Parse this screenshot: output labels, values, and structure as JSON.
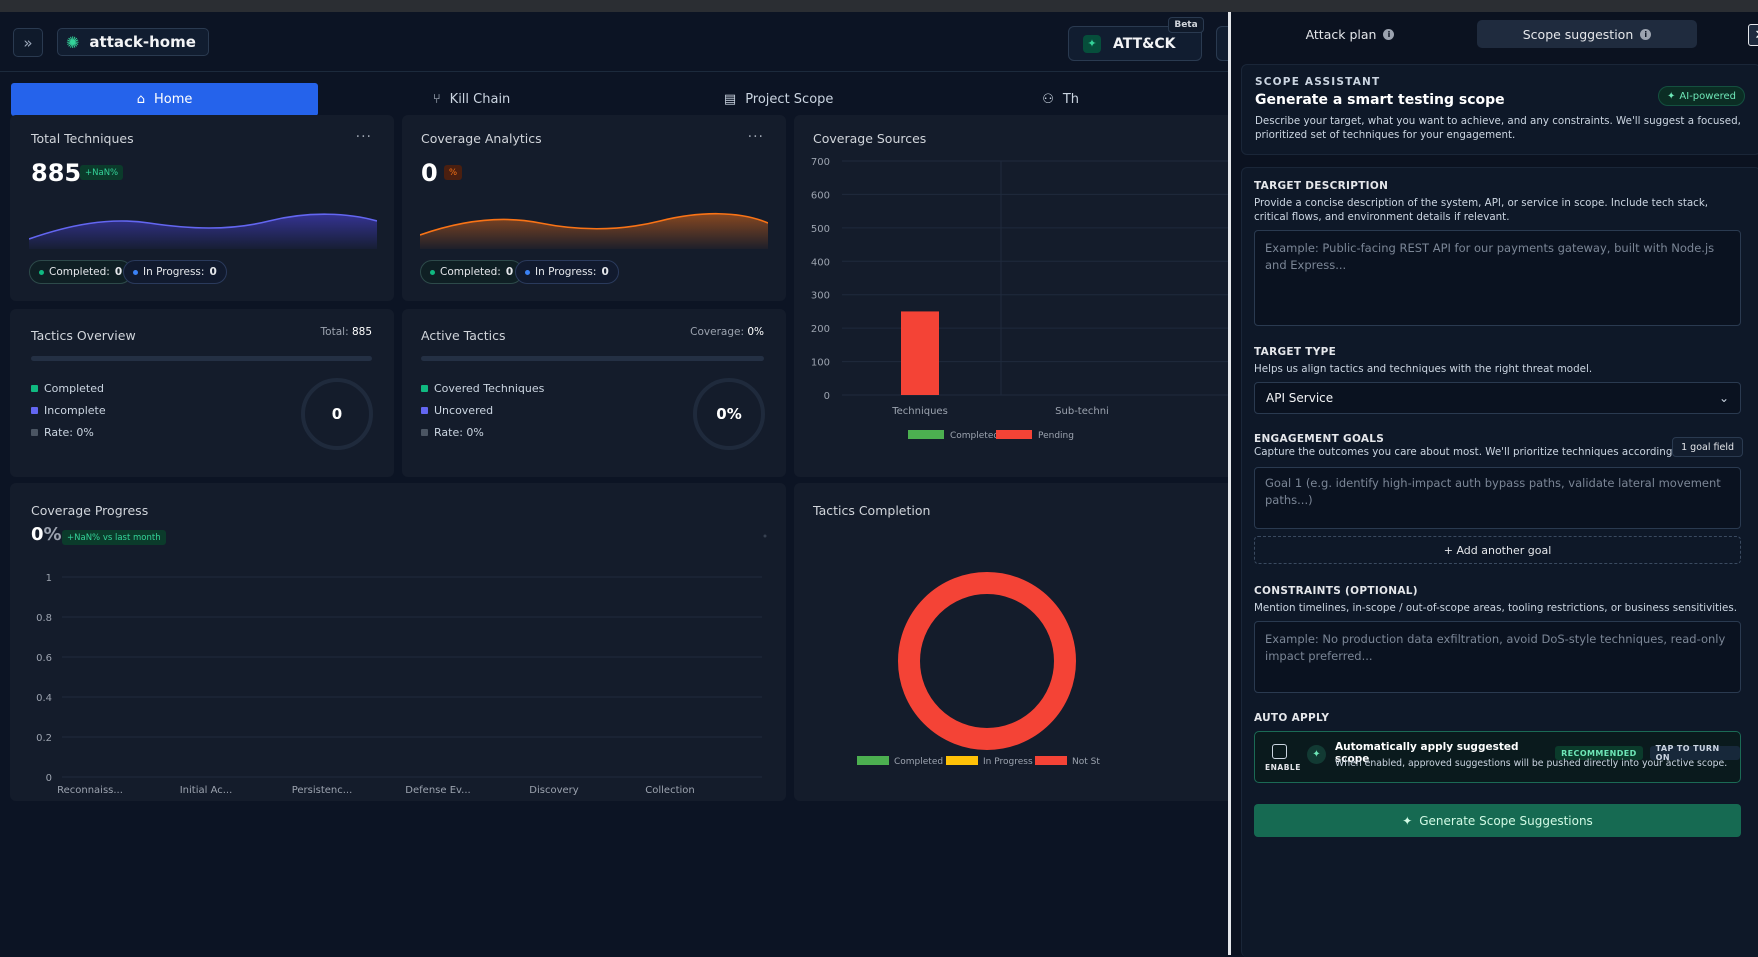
{
  "header": {
    "project_name": "attack-home",
    "attack_label": "ATT&CK",
    "beta_label": "Beta"
  },
  "nav": {
    "tabs": [
      {
        "label": "Home",
        "active": true
      },
      {
        "label": "Kill Chain"
      },
      {
        "label": "Project Scope"
      },
      {
        "label": "Th"
      }
    ]
  },
  "cards": {
    "total_techniques": {
      "title": "Total Techniques",
      "value": "885",
      "delta": "+NaN%",
      "completed_label": "Completed:",
      "completed_value": "0",
      "inprogress_label": "In Progress:",
      "inprogress_value": "0"
    },
    "coverage_analytics": {
      "title": "Coverage Analytics",
      "value": "0",
      "delta": "%",
      "completed_label": "Completed:",
      "completed_value": "0",
      "inprogress_label": "In Progress:",
      "inprogress_value": "0"
    },
    "tactics_overview": {
      "title": "Tactics Overview",
      "total_label": "Total:",
      "total_value": "885",
      "items": [
        "Completed",
        "Incomplete",
        "Rate: 0%"
      ],
      "ring_value": "0"
    },
    "active_tactics": {
      "title": "Active Tactics",
      "coverage_label": "Coverage:",
      "coverage_value": "0%",
      "items": [
        "Covered Techniques",
        "Uncovered",
        "Rate: 0%"
      ],
      "ring_value": "0%"
    },
    "coverage_progress": {
      "title": "Coverage Progress",
      "value": "0",
      "unit": "%",
      "delta": "+NaN% vs last month"
    },
    "coverage_sources": {
      "title": "Coverage Sources"
    },
    "tactics_completion": {
      "title": "Tactics Completion"
    }
  },
  "chart_data": [
    {
      "type": "bar",
      "title": "Coverage Sources",
      "categories": [
        "Techniques",
        "Sub-techni"
      ],
      "series": [
        {
          "name": "Completed",
          "color": "#4caf50",
          "values": [
            0,
            0
          ]
        },
        {
          "name": "Pending",
          "color": "#f44336",
          "values": [
            250,
            0
          ]
        }
      ],
      "ylim": [
        0,
        700
      ],
      "yticks": [
        0,
        100,
        200,
        300,
        400,
        500,
        600,
        700
      ],
      "legend": "bottom"
    },
    {
      "type": "line",
      "title": "Coverage Progress",
      "categories": [
        "Reconnaiss...",
        "Initial Ac...",
        "Persistenc...",
        "Defense Ev...",
        "Discovery",
        "Collection"
      ],
      "ylim": [
        0,
        1
      ],
      "yticks": [
        0,
        0.2,
        0.4,
        0.6,
        0.8,
        1
      ]
    },
    {
      "type": "pie",
      "title": "Tactics Completion",
      "series": [
        {
          "name": "Completed",
          "color": "#4caf50",
          "value": 0
        },
        {
          "name": "In Progress",
          "color": "#ffc107",
          "value": 0
        },
        {
          "name": "Not St",
          "color": "#f44336",
          "value": 100
        }
      ],
      "legend": "bottom"
    }
  ],
  "panel": {
    "tab_attack_plan": "Attack plan",
    "tab_scope_suggestion": "Scope suggestion",
    "close_glyph": "✕",
    "kicker": "SCOPE ASSISTANT",
    "heading": "Generate a smart testing scope",
    "ai_label": "AI-powered",
    "intro": "Describe your target, what you want to achieve, and any constraints. We'll suggest a focused, prioritized set of techniques for your engagement.",
    "target_desc_label": "TARGET DESCRIPTION",
    "target_desc_help": "Provide a concise description of the system, API, or service in scope. Include tech stack, critical flows, and environment details if relevant.",
    "target_desc_placeholder": "Example: Public-facing REST API for our payments gateway, built with Node.js and Express...",
    "target_type_label": "TARGET TYPE",
    "target_type_help": "Helps us align tactics and techniques with the right threat model.",
    "target_type_value": "API Service",
    "goals_label": "ENGAGEMENT GOALS",
    "goals_help": "Capture the outcomes you care about most. We'll prioritize techniques accordingly.",
    "goals_badge": "1 goal field",
    "goal_placeholder": "Goal 1 (e.g. identify high-impact auth bypass paths, validate lateral movement paths...)",
    "add_goal": "+ Add another goal",
    "constraints_label": "CONSTRAINTS (OPTIONAL)",
    "constraints_help": "Mention timelines, in-scope / out-of-scope areas, tooling restrictions, or business sensitivities.",
    "constraints_placeholder": "Example: No production data exfiltration, avoid DoS-style techniques, read-only impact preferred...",
    "auto_label": "AUTO APPLY",
    "enable_label": "ENABLE",
    "auto_title": "Automatically apply suggested scope",
    "recommended": "RECOMMENDED",
    "tap_to_turn_on": "TAP TO TURN ON",
    "auto_desc": "When enabled, approved suggestions will be pushed directly into your active scope.",
    "generate_label": "Generate Scope Suggestions"
  }
}
